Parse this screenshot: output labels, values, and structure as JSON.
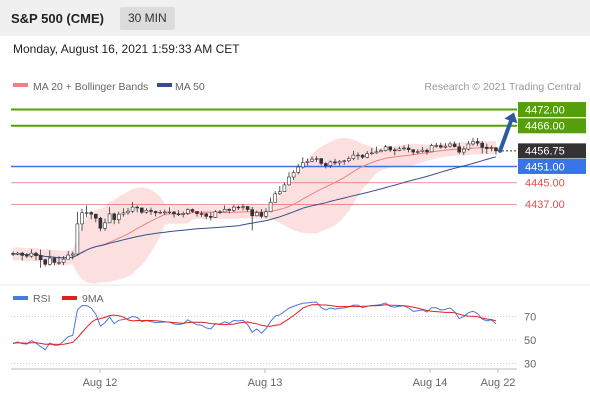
{
  "header": {
    "title": "S&P 500 (CME)",
    "interval": "30 MIN"
  },
  "timestamp": "Monday, August 16, 2021 1:59:33 AM CET",
  "legend": {
    "bollinger": "MA 20 + Bollinger Bands",
    "ma50": "MA 50",
    "credit": "Research © 2021 Trading Central"
  },
  "colors": {
    "green": "#55a00a",
    "blue": "#3a73e6",
    "red": "#e05050",
    "arrow": "#2c5aa0",
    "current": "#333333",
    "band": "#fbd5d5",
    "ma20": "#f08080",
    "ma50": "#34508c",
    "rsi": "#4a7be0",
    "rsi_ma": "#e02020"
  },
  "chart_data": [
    {
      "type": "line",
      "subtype": "candlestick",
      "title": "",
      "y_range": [
        4408,
        4477
      ],
      "x_ticks": [
        "Aug 12",
        "Aug 13",
        "Aug 14",
        "Aug 22"
      ],
      "price_levels": [
        {
          "label": "4472.00",
          "value": 4472.0,
          "style": "resistance"
        },
        {
          "label": "4466.00",
          "value": 4466.0,
          "style": "resistance"
        },
        {
          "label": "4456.75",
          "value": 4456.75,
          "style": "current"
        },
        {
          "label": "4451.00",
          "value": 4451.0,
          "style": "pivot"
        },
        {
          "label": "4445.00",
          "value": 4445.0,
          "style": "support"
        },
        {
          "label": "4437.00",
          "value": 4437.0,
          "style": "support"
        }
      ],
      "series": [
        {
          "name": "MA 20 + Bollinger Bands"
        },
        {
          "name": "MA 50"
        }
      ],
      "close": [
        4418.6,
        4419,
        4418.2,
        4417.9,
        4419,
        4418.1,
        4416.6,
        4414.9,
        4417.2,
        4415.6,
        4415.6,
        4416.8,
        4418.3,
        4418.7,
        4429.8,
        4433.9,
        4434,
        4433.4,
        4431.9,
        4428.2,
        4430.2,
        4433.5,
        4431.4,
        4433.4,
        4433.9,
        4434.5,
        4436,
        4435.7,
        4434.1,
        4434.8,
        4434.4,
        4433.9,
        4434.1,
        4434.2,
        4434.2,
        4433.5,
        4433.3,
        4433.7,
        4435.1,
        4434.4,
        4433.6,
        4433.5,
        4432.6,
        4432.2,
        4434.3,
        4434.2,
        4435.2,
        4434.8,
        4436,
        4435.9,
        4436.2,
        4435.1,
        4432.8,
        4434,
        4432.6,
        4434.3,
        4437.8,
        4440.9,
        4441.7,
        4444.2,
        4447.1,
        4448.8,
        4450.8,
        4452.4,
        4452.9,
        4453.7,
        4453.9,
        4452.1,
        4451.3,
        4452.7,
        4452.3,
        4452.9,
        4453.1,
        4453.9,
        4455.2,
        4455.2,
        4454.4,
        4455.7,
        4456,
        4456.4,
        4456.9,
        4458.3,
        4457.1,
        4456.9,
        4457.5,
        4457.8,
        4457.2,
        4456.3,
        4456.5,
        4457,
        4456.4,
        4458.7,
        4458.7,
        4458.1,
        4458.5,
        4459.3,
        4458.3,
        4456.3,
        4457.4,
        4459.3,
        4460.2,
        4459.6,
        4458.1,
        4457.6,
        4457.9,
        4456.75
      ],
      "high": [
        4419.6,
        4419.5,
        4419.5,
        4419.1,
        4420.4,
        4419.5,
        4420.3,
        4416.9,
        4420.1,
        4416.8,
        4417.9,
        4417.9,
        4419.8,
        4419.6,
        4434.3,
        4435.4,
        4436.6,
        4434.6,
        4433.5,
        4432.4,
        4431.7,
        4436,
        4434,
        4434.3,
        4435.6,
        4435.7,
        4437.9,
        4436.6,
        4435.2,
        4435.6,
        4435.8,
        4434.7,
        4434.9,
        4435.1,
        4435.9,
        4434.6,
        4434.9,
        4434.4,
        4435.5,
        4435.5,
        4434.1,
        4434.5,
        4433.9,
        4434.1,
        4434.9,
        4434.9,
        4436.6,
        4435.5,
        4436.8,
        4436.6,
        4437.2,
        4436.4,
        4436.1,
        4434.7,
        4435.3,
        4435.6,
        4439.5,
        4441.9,
        4443.8,
        4445.1,
        4448.9,
        4449.6,
        4451.9,
        4454.4,
        4454,
        4454.7,
        4454.8,
        4454.1,
        4452.5,
        4453.2,
        4453.8,
        4453.4,
        4453.5,
        4454.7,
        4456.8,
        4456.2,
        4455.5,
        4456.7,
        4457.8,
        4458.3,
        4457.6,
        4458.9,
        4458.5,
        4457.9,
        4458.3,
        4458.8,
        4459.1,
        4457.3,
        4457.4,
        4458.2,
        4457.6,
        4459.4,
        4459.7,
        4459.8,
        4459.6,
        4460.1,
        4460.2,
        4459.7,
        4458.4,
        4460.4,
        4461.6,
        4461.5,
        4460.4,
        4459.4,
        4458.8,
        4458.2
      ],
      "low": [
        4417.9,
        4418.3,
        4416.3,
        4417.2,
        4417.3,
        4416.4,
        4413.6,
        4414.1,
        4414.4,
        4414.5,
        4414.7,
        4414.6,
        4416.9,
        4416.7,
        4418.1,
        4427.3,
        4432.3,
        4431.5,
        4430.4,
        4427.1,
        4427.3,
        4430.1,
        4429.7,
        4429.9,
        4432.5,
        4433.2,
        4433.8,
        4434.1,
        4433.5,
        4433.6,
        4433.1,
        4432.6,
        4433.5,
        4433.1,
        4433.5,
        4432.1,
        4432.7,
        4432.2,
        4433.1,
        4433.9,
        4432.5,
        4432.3,
        4431.5,
        4431.1,
        4432,
        4433.4,
        4434.5,
        4433.7,
        4434.2,
        4435,
        4434.8,
        4434.4,
        4427.4,
        4432.6,
        4431.9,
        4431.8,
        4434.1,
        4438.5,
        4440.4,
        4441.6,
        4443.9,
        4446,
        4448.1,
        4450.2,
        4451.3,
        4452.6,
        4452.7,
        4451.4,
        4450.3,
        4450.4,
        4451.5,
        4451.3,
        4451.6,
        4452.5,
        4453.3,
        4453.5,
        4453.8,
        4454,
        4455.2,
        4455.7,
        4456.3,
        4456.5,
        4456.3,
        4455.1,
        4456.6,
        4456.8,
        4456.2,
        4455.2,
        4455.7,
        4456.1,
        4455.3,
        4456.3,
        4457.9,
        4457.6,
        4457.6,
        4458,
        4458,
        4455.6,
        4455.2,
        4456.9,
        4458.7,
        4458.6,
        4455.8,
        4455.6,
        4456.6,
        4455.4
      ]
    },
    {
      "type": "line",
      "title": "",
      "y_range": [
        20,
        80
      ],
      "y_ticks": [
        70,
        50,
        30
      ],
      "series": [
        {
          "name": "RSI",
          "values": [
            47.1,
            48.3,
            46.9,
            46.5,
            49.4,
            47.3,
            44.3,
            41.7,
            47.4,
            45.5,
            45.6,
            49.1,
            52.9,
            53.9,
            75.8,
            79.5,
            79.6,
            77.3,
            72.2,
            61.8,
            64.9,
            69.6,
            64.1,
            66.9,
            67.6,
            68.3,
            70.2,
            69.3,
            65.7,
            66.7,
            65.8,
            64.9,
            65.2,
            65.4,
            65.4,
            63.7,
            63.3,
            64.1,
            67.2,
            65.1,
            63,
            62.7,
            60.4,
            59.4,
            64,
            63.6,
            65.6,
            64.3,
            66.7,
            66.4,
            66.9,
            63.2,
            56.6,
            59.4,
            55.9,
            59.6,
            65.9,
            70.5,
            71.6,
            74.4,
            77.3,
            78.8,
            80.3,
            81.5,
            81.8,
            82.4,
            82.5,
            77.8,
            75.8,
            77.4,
            76.5,
            77.2,
            77.4,
            78.4,
            79.9,
            79.9,
            77.6,
            79.1,
            79.5,
            79.9,
            80.4,
            81.8,
            78.8,
            78.2,
            79,
            79.4,
            77.4,
            74.6,
            75,
            75.8,
            74,
            77.6,
            77.6,
            75.7,
            76.2,
            77.5,
            74.2,
            68.3,
            70.2,
            73.3,
            74.7,
            72.6,
            67.9,
            66.5,
            67.2,
            63.8
          ]
        },
        {
          "name": "9MA",
          "values": [
            47.1,
            47.7,
            47.4,
            47.2,
            47.6,
            47.6,
            47.1,
            46.4,
            46.5,
            46.4,
            46.2,
            46.4,
            47.1,
            48,
            51.9,
            56.4,
            60.9,
            65,
            67.6,
            68.3,
            69.4,
            70.9,
            71.4,
            70.8,
            69.6,
            67.2,
            66.4,
            66.7,
            66.6,
            66.8,
            66.7,
            66.5,
            66.2,
            65.6,
            65.3,
            64.9,
            64.6,
            64.3,
            64.9,
            65.2,
            65.2,
            65.2,
            64.8,
            64.1,
            63.8,
            63.4,
            63.4,
            63.4,
            63.6,
            64.6,
            65.1,
            65.4,
            64.6,
            63.9,
            62.6,
            61.9,
            61.8,
            62.6,
            63,
            65.7,
            68.2,
            71,
            74.1,
            77.3,
            79,
            80.2,
            80.3,
            80,
            80,
            79.6,
            79,
            78.5,
            78.7,
            78.6,
            78.9,
            78.6,
            78.9,
            79.1,
            79.5,
            79.4,
            79.7,
            80.2,
            79.9,
            79.8,
            79.6,
            79.4,
            78.9,
            78,
            77.3,
            76.3,
            75.3,
            74.7,
            74.3,
            74,
            73.7,
            73.7,
            73.4,
            72.1,
            71.1,
            70.5,
            70.3,
            70,
            68.8,
            68,
            67.5,
            66.4
          ]
        }
      ]
    }
  ]
}
